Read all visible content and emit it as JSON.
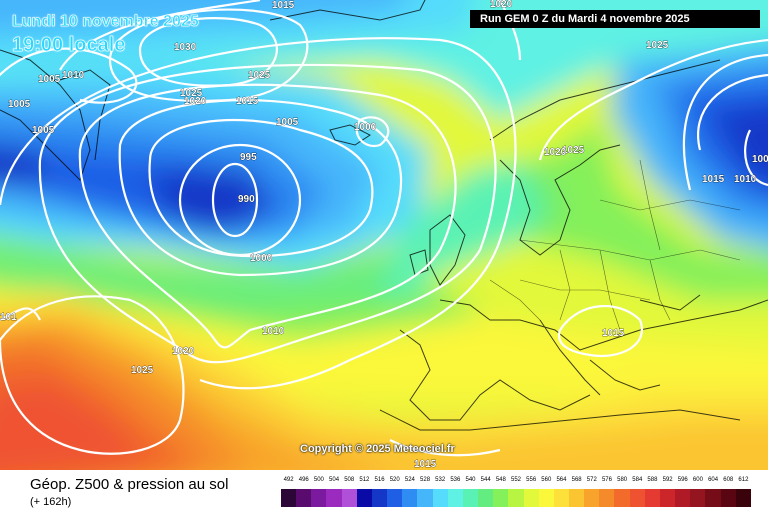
{
  "header": {
    "date_line": "Lundi 10 novembre 2025",
    "time_line": "19:00 locale",
    "run_info": "Run GEM 0 Z du Mardi 4 novembre 2025"
  },
  "map": {
    "copyright": "Copyright © 2025 Meteociel.fr",
    "isobar_labels": {
      "l1015_top": "1015",
      "l1020_top": "1020",
      "l1030": "1030",
      "l1005_w1": "1005",
      "l1010_w1": "1010",
      "l1025_w1": "1025",
      "l1025_w2": "1025",
      "l1020_w": "1020",
      "l1015_w": "1015",
      "l1005_w2": "1005",
      "l1005_w3": "1005",
      "l1005_c": "1005",
      "l1000_c": "1000",
      "l995": "995",
      "l990": "990",
      "l1000_s": "1000",
      "l1010_s": "1010",
      "l1020_s": "1020",
      "l1025_sw": "1025",
      "l1015_e": "1015",
      "l1010_e": "1010",
      "l1025_ne": "1025",
      "l1025_n": "1025",
      "l1020_n": "1020",
      "l1015_eu": "1015",
      "l1015_bottom": "1015",
      "l1010_left": "101",
      "l1005_far_e": "100"
    }
  },
  "footer": {
    "title": "Géop. Z500 & pression au sol",
    "subtitle": "(+ 162h)"
  },
  "legend": {
    "values": [
      "492",
      "496",
      "500",
      "504",
      "508",
      "512",
      "516",
      "520",
      "524",
      "528",
      "532",
      "536",
      "540",
      "544",
      "548",
      "552",
      "556",
      "560",
      "564",
      "568",
      "572",
      "576",
      "580",
      "584",
      "588",
      "592",
      "596",
      "600",
      "604",
      "608",
      "612"
    ],
    "colors": [
      "#2b0637",
      "#5a0b6e",
      "#7b1a9e",
      "#9b2bbe",
      "#b04fd8",
      "#0a0aa6",
      "#1537c8",
      "#1e5fe6",
      "#2e8cf2",
      "#46b6fb",
      "#55dbfb",
      "#5ff1e3",
      "#5af2b4",
      "#63ed80",
      "#84f05a",
      "#b8f542",
      "#e2f83a",
      "#fbf73a",
      "#fde13a",
      "#fbc532",
      "#f8a42c",
      "#f58a2a",
      "#f26b2a",
      "#ef5230",
      "#e43a32",
      "#cc262b",
      "#b01a26",
      "#941420",
      "#770c19",
      "#5a0612",
      "#3a020a"
    ]
  }
}
